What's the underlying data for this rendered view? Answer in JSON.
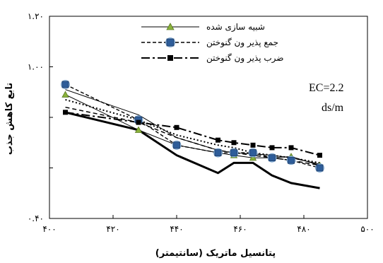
{
  "chart_data": {
    "type": "line",
    "title": "",
    "xlabel": "پتانسیل ماتریک (سانتیمتر)",
    "ylabel": "تابع کاهش جذب",
    "xlim": [
      400,
      500
    ],
    "ylim": [
      0.4,
      1.2
    ],
    "xticks": [
      400,
      420,
      440,
      460,
      480,
      500
    ],
    "yticks": [
      0.4,
      0.6,
      0.8,
      1.0,
      1.2
    ],
    "xtick_labels": [
      "۴۰۰",
      "۴۲۰",
      "۴۴۰",
      "۴۶۰",
      "۴۸۰",
      "۵۰۰"
    ],
    "ytick_labels": [
      "۰.۴۰",
      "",
      "",
      "۱.۰۰",
      "۱.۲۰"
    ],
    "grid": false,
    "legend_position": "top-right",
    "annotation": [
      "EC=2.2",
      "ds/m"
    ],
    "series": [
      {
        "name": "شبیه سازی شده",
        "marker": "triangle",
        "color": "#8ab23c",
        "x": [
          405,
          428,
          440,
          453,
          458,
          464,
          470,
          476,
          485
        ],
        "y": [
          0.89,
          0.75,
          0.69,
          0.66,
          0.65,
          0.64,
          0.64,
          0.645,
          0.61
        ]
      },
      {
        "name": "جمع پذیر ون گنوختن",
        "marker": "square",
        "color": "#2e5d9a",
        "x": [
          405,
          428,
          440,
          453,
          458,
          464,
          470,
          476,
          485
        ],
        "y": [
          0.93,
          0.79,
          0.69,
          0.66,
          0.66,
          0.66,
          0.64,
          0.63,
          0.6
        ]
      },
      {
        "name": "ضرب پذیر ون گنوختن",
        "marker": "square",
        "color": "#000000",
        "x": [
          405,
          428,
          440,
          453,
          458,
          464,
          470,
          476,
          485
        ],
        "y": [
          0.82,
          0.78,
          0.76,
          0.71,
          0.7,
          0.69,
          0.68,
          0.68,
          0.65
        ]
      }
    ],
    "extra_lines": [
      {
        "style": "solid-thick",
        "x": [
          405,
          428,
          440,
          453,
          458,
          464,
          470,
          476,
          485
        ],
        "y": [
          0.82,
          0.75,
          0.65,
          0.58,
          0.62,
          0.62,
          0.57,
          0.54,
          0.52
        ]
      },
      {
        "style": "dashed",
        "x": [
          405,
          428,
          440,
          453,
          458,
          464,
          470,
          476,
          485
        ],
        "y": [
          0.84,
          0.78,
          0.72,
          0.67,
          0.66,
          0.65,
          0.64,
          0.63,
          0.61
        ]
      },
      {
        "style": "dotted",
        "x": [
          405,
          428,
          440,
          453,
          458,
          464,
          470,
          476,
          485
        ],
        "y": [
          0.87,
          0.79,
          0.73,
          0.69,
          0.68,
          0.66,
          0.65,
          0.64,
          0.62
        ]
      },
      {
        "style": "solid-thin",
        "x": [
          405,
          428,
          440,
          453,
          458,
          464,
          470,
          476,
          485
        ],
        "y": [
          0.91,
          0.81,
          0.72,
          0.67,
          0.66,
          0.655,
          0.65,
          0.64,
          0.615
        ]
      }
    ],
    "legend": [
      "شبیه سازی شده",
      "جمع پذیر ون گنوختن",
      "ضرب پذیر ون گنوختن"
    ]
  }
}
